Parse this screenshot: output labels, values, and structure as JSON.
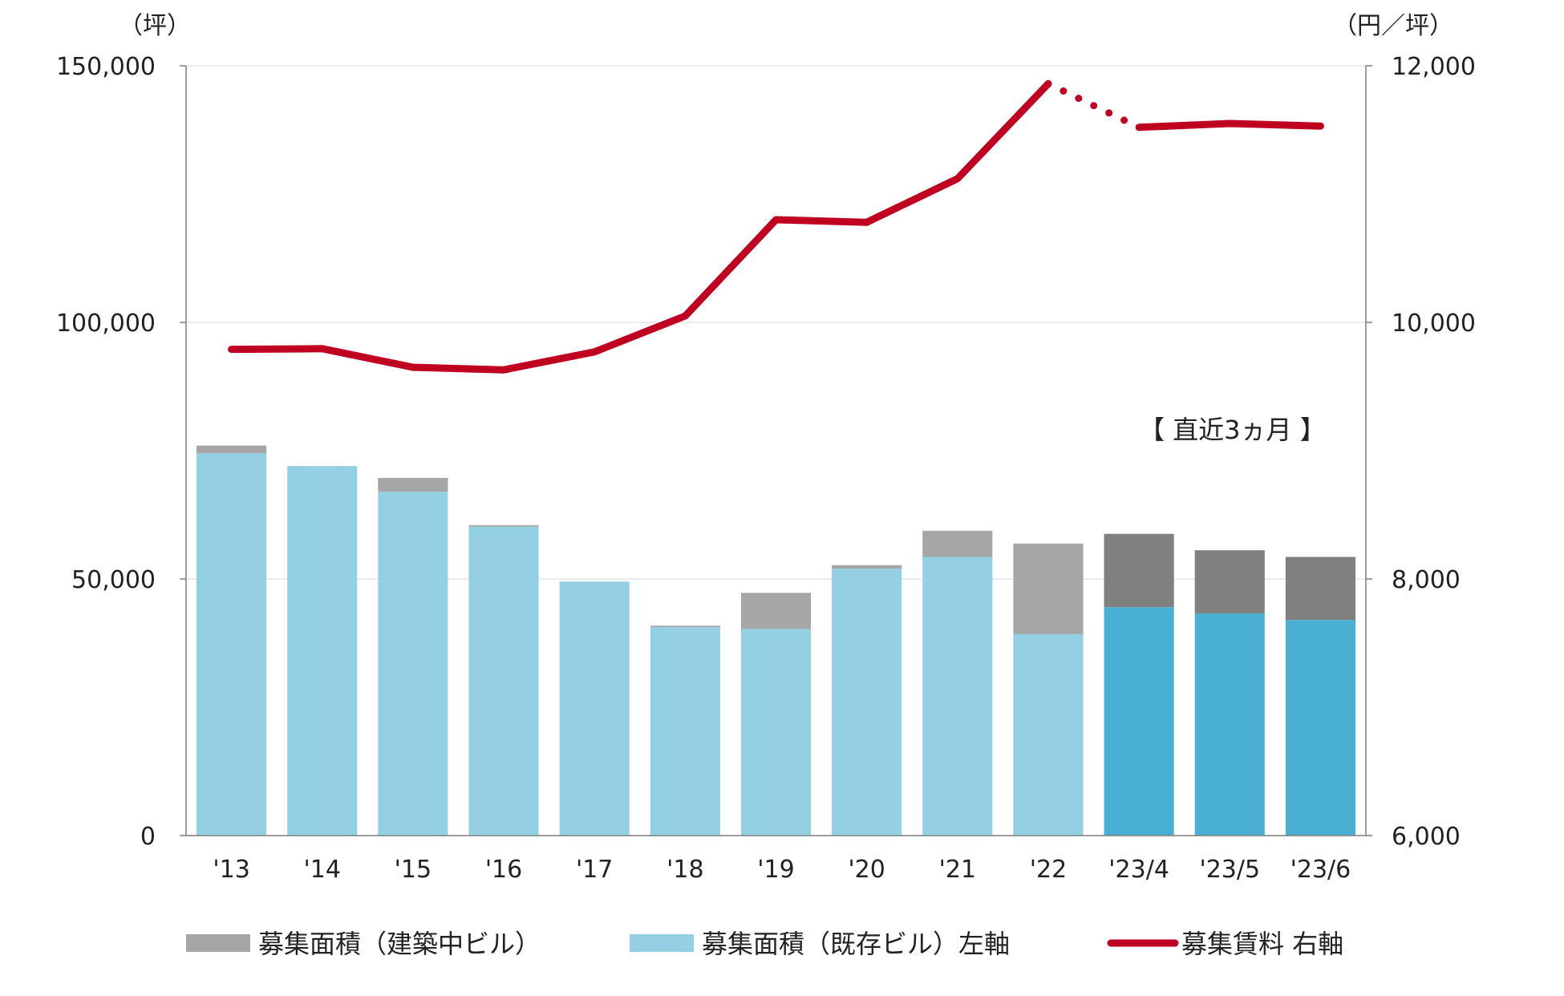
{
  "chart_data": {
    "type": "bar",
    "stacked": true,
    "categories": [
      "'13",
      "'14",
      "'15",
      "'16",
      "'17",
      "'18",
      "'19",
      "'20",
      "'21",
      "'22",
      "'23/4",
      "'23/5",
      "'23/6"
    ],
    "series": [
      {
        "name": "募集面積（既存ビル）左軸",
        "type": "bar",
        "axis": "left",
        "values": [
          74500,
          72000,
          67000,
          60200,
          49500,
          40600,
          40300,
          52000,
          54300,
          39300,
          44500,
          43300,
          42000
        ],
        "color": "#93d0e3",
        "recent_color": "#49b0d3"
      },
      {
        "name": "募集面積（建築中ビル）",
        "type": "bar",
        "axis": "left",
        "values": [
          1500,
          0,
          2700,
          300,
          0,
          300,
          7000,
          700,
          5100,
          17600,
          14300,
          12300,
          12300
        ],
        "color": "#a6a6a6",
        "recent_color": "#808080"
      },
      {
        "name": "募集賃料 右軸",
        "type": "line",
        "axis": "right",
        "values": [
          9790,
          9795,
          9650,
          9630,
          9770,
          10050,
          10800,
          10780,
          11120,
          11860,
          11520,
          11550,
          11530
        ],
        "color": "#c00020",
        "dotted_between": [
          9,
          10
        ]
      }
    ],
    "recent_start_index": 10,
    "y_left": {
      "unit_label": "（坪）",
      "ylim": [
        0,
        150000
      ],
      "ticks": [
        "0",
        "50,000",
        "100,000",
        "150,000"
      ],
      "tick_values": [
        0,
        50000,
        100000,
        150000
      ]
    },
    "y_right": {
      "unit_label": "（円／坪）",
      "ylim": [
        6000,
        12000
      ],
      "ticks": [
        "6,000",
        "8,000",
        "10,000",
        "12,000"
      ],
      "tick_values": [
        6000,
        8000,
        10000,
        12000
      ]
    },
    "grid": true,
    "legend_position": "bottom",
    "annotation": "【 直近3ヵ月 】"
  },
  "legend": {
    "items": [
      {
        "label": "募集面積（建築中ビル）",
        "color": "#a6a6a6",
        "kind": "bar"
      },
      {
        "label": "募集面積（既存ビル）左軸",
        "color": "#93d0e3",
        "kind": "bar"
      },
      {
        "label": "募集賃料 右軸",
        "color": "#c00020",
        "kind": "line"
      }
    ]
  }
}
